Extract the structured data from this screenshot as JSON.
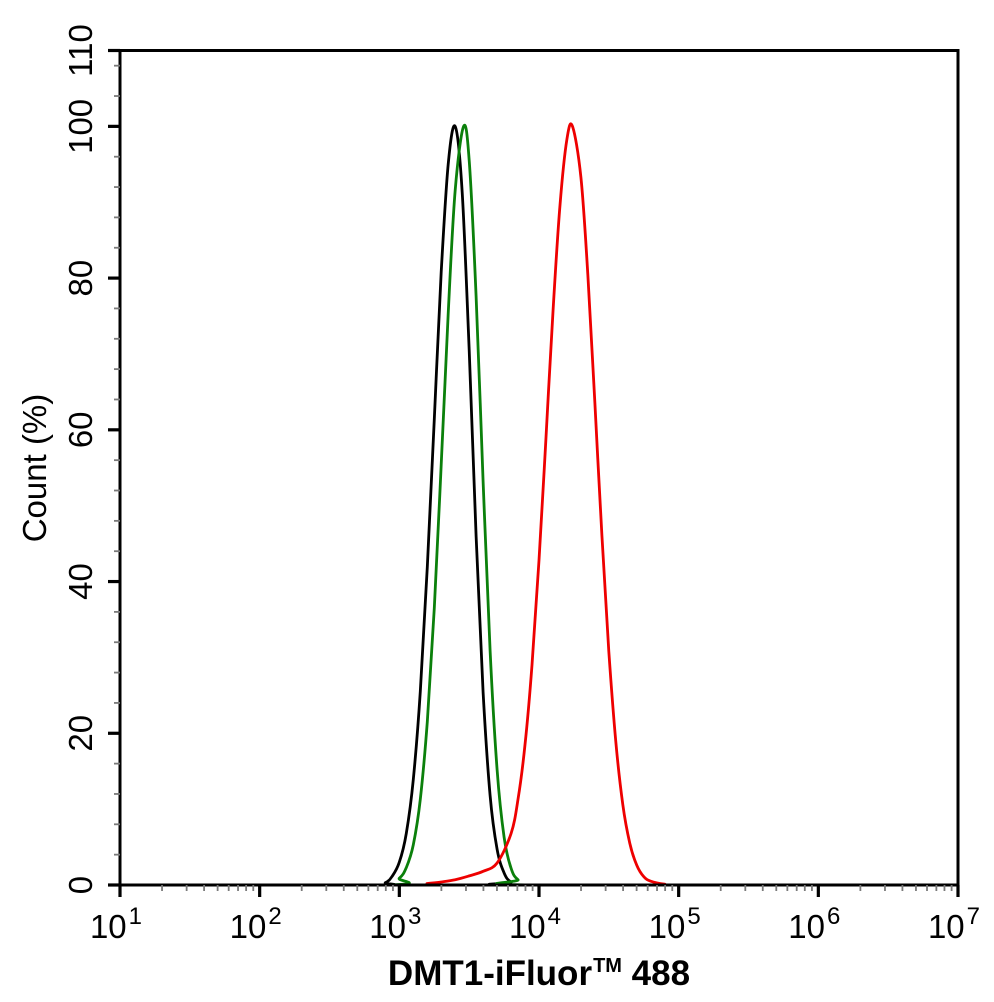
{
  "chart_data": {
    "type": "line",
    "subtype": "flow-cytometry-overlay-histogram",
    "title": "",
    "xlabel": "DMT1-iFluor™ 488",
    "xlabel_parts": {
      "prefix": "DMT1-iFluor",
      "superscript": "TM",
      "suffix": " 488"
    },
    "ylabel": "Count  (%)",
    "x_scale": "log",
    "x_range_exponents": [
      1,
      7
    ],
    "x_major_tick_base": "10",
    "x_major_tick_exponents": [
      1,
      2,
      3,
      4,
      5,
      6,
      7
    ],
    "x_minor_tick_mantissas": [
      2,
      3,
      4,
      5,
      6,
      7,
      8,
      9
    ],
    "ylim": [
      0,
      110
    ],
    "y_major_ticks": [
      0,
      20,
      40,
      60,
      80,
      100,
      110
    ],
    "y_minor_tick_step": 4,
    "grid": false,
    "legend": "none",
    "frame": "full-box",
    "colors": {
      "axis": "#000000",
      "minor_tick": "#7a7a7a",
      "text": "#000000",
      "background": "#ffffff"
    },
    "series": [
      {
        "name": "black-curve",
        "color": "#000000",
        "peak_x_approx": 2500,
        "peak_count_percent": 100,
        "points_log10x_percent": [
          [
            2.8,
            0
          ],
          [
            2.9,
            0.3
          ],
          [
            2.95,
            1.2
          ],
          [
            3.0,
            3.0
          ],
          [
            3.05,
            6.8
          ],
          [
            3.1,
            13.9
          ],
          [
            3.15,
            25.5
          ],
          [
            3.2,
            41.9
          ],
          [
            3.25,
            61.4
          ],
          [
            3.3,
            80.8
          ],
          [
            3.35,
            95.0
          ],
          [
            3.4,
            100
          ],
          [
            3.45,
            91.3
          ],
          [
            3.5,
            70.5
          ],
          [
            3.55,
            46.0
          ],
          [
            3.6,
            25.4
          ],
          [
            3.65,
            11.8
          ],
          [
            3.7,
            4.7
          ],
          [
            3.75,
            1.6
          ],
          [
            3.8,
            0.4
          ],
          [
            3.9,
            0
          ]
        ]
      },
      {
        "name": "green-curve",
        "color": "#0b800b",
        "peak_x_approx": 2900,
        "peak_count_percent": 100,
        "points_log10x_percent": [
          [
            2.9,
            0
          ],
          [
            3.0,
            0.9
          ],
          [
            3.05,
            2.3
          ],
          [
            3.1,
            5.3
          ],
          [
            3.15,
            11.3
          ],
          [
            3.2,
            21.5
          ],
          [
            3.25,
            36.5
          ],
          [
            3.3,
            55.4
          ],
          [
            3.35,
            75.3
          ],
          [
            3.4,
            91.6
          ],
          [
            3.46,
            100
          ],
          [
            3.5,
            95.5
          ],
          [
            3.55,
            77.6
          ],
          [
            3.6,
            53.2
          ],
          [
            3.65,
            30.9
          ],
          [
            3.7,
            15.2
          ],
          [
            3.75,
            6.3
          ],
          [
            3.8,
            2.2
          ],
          [
            3.85,
            0.7
          ],
          [
            3.95,
            0
          ]
        ]
      },
      {
        "name": "red-curve",
        "color": "#ee0000",
        "peak_x_approx": 17500,
        "peak_count_percent": 100,
        "points_log10x_percent": [
          [
            3.1,
            0
          ],
          [
            3.2,
            0.2
          ],
          [
            3.3,
            0.4
          ],
          [
            3.4,
            0.7
          ],
          [
            3.5,
            1.2
          ],
          [
            3.6,
            1.8
          ],
          [
            3.7,
            2.9
          ],
          [
            3.8,
            6.8
          ],
          [
            3.85,
            11.3
          ],
          [
            3.9,
            18.5
          ],
          [
            3.95,
            29.0
          ],
          [
            4.0,
            42.8
          ],
          [
            4.05,
            59.0
          ],
          [
            4.1,
            75.6
          ],
          [
            4.15,
            89.6
          ],
          [
            4.2,
            98.3
          ],
          [
            4.24,
            100
          ],
          [
            4.3,
            93.3
          ],
          [
            4.35,
            80.3
          ],
          [
            4.4,
            63.5
          ],
          [
            4.45,
            46.1
          ],
          [
            4.5,
            30.8
          ],
          [
            4.55,
            18.9
          ],
          [
            4.6,
            10.6
          ],
          [
            4.65,
            5.5
          ],
          [
            4.7,
            2.6
          ],
          [
            4.75,
            1.1
          ],
          [
            4.8,
            0.5
          ],
          [
            4.9,
            0.1
          ],
          [
            5.0,
            0
          ]
        ]
      }
    ]
  }
}
